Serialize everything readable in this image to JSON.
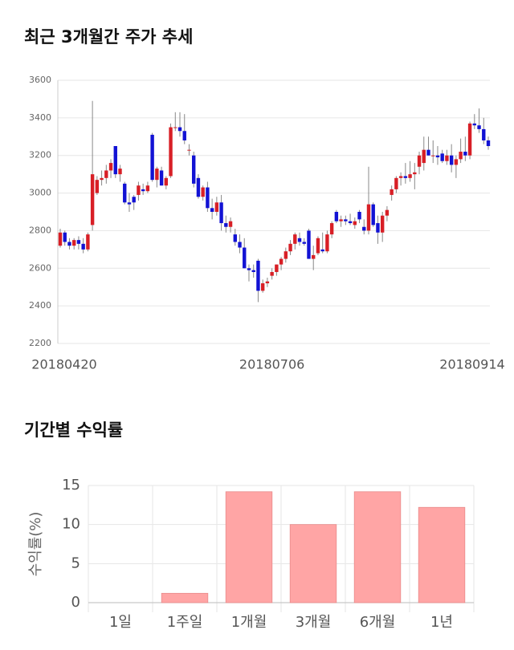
{
  "chart_data": [
    {
      "type": "candlestick",
      "title": "최근 3개월간 주가 추세",
      "categories": [
        "20180420",
        null,
        null,
        null,
        null,
        null,
        null,
        null,
        null,
        null,
        null,
        null,
        null,
        null,
        null,
        null,
        null,
        null,
        null,
        null,
        null,
        null,
        null,
        null,
        null,
        null,
        null,
        null,
        null,
        null,
        null,
        null,
        null,
        null,
        null,
        null,
        null,
        null,
        null,
        null,
        null,
        null,
        null,
        null,
        null,
        null,
        "20180706",
        null,
        null,
        null,
        null,
        null,
        null,
        null,
        null,
        null,
        null,
        null,
        null,
        null,
        null,
        null,
        null,
        null,
        null,
        null,
        null,
        null,
        null,
        null,
        null,
        null,
        null,
        null,
        null,
        null,
        null,
        null,
        null,
        null,
        null,
        null,
        null,
        null,
        null,
        null,
        null,
        null,
        null,
        null,
        null,
        null,
        null,
        "20180914"
      ],
      "open": [
        2720,
        2790,
        2740,
        2720,
        2750,
        2730,
        2700,
        2830,
        3000,
        3070,
        3080,
        3120,
        3250,
        3100,
        3050,
        2950,
        2980,
        2990,
        3020,
        3010,
        3310,
        3070,
        3120,
        3040,
        3090,
        3350,
        3350,
        3330,
        3230,
        3200,
        3080,
        2980,
        3030,
        2920,
        2900,
        2950,
        2840,
        2820,
        2780,
        2740,
        2710,
        2600,
        2590,
        2640,
        2480,
        2520,
        2560,
        2580,
        2620,
        2650,
        2690,
        2730,
        2760,
        2740,
        2800,
        2650,
        2680,
        2700,
        2690,
        2780,
        2900,
        2850,
        2860,
        2850,
        2830,
        2900,
        2820,
        2800,
        2940,
        2840,
        2790,
        2880,
        2990,
        3020,
        3080,
        3090,
        3080,
        3100,
        3140,
        3160,
        3230,
        3200,
        3200,
        3210,
        3170,
        3200,
        3150,
        3180,
        3220,
        3200,
        3370,
        3360,
        3340,
        3280
      ],
      "high": [
        2810,
        2800,
        2760,
        2760,
        2770,
        2760,
        2790,
        3490,
        3090,
        3120,
        3150,
        3180,
        3250,
        3150,
        3060,
        3000,
        2990,
        3060,
        3050,
        3060,
        3320,
        3140,
        3140,
        3090,
        3370,
        3430,
        3430,
        3420,
        3260,
        3220,
        3100,
        3040,
        3060,
        2970,
        2980,
        2990,
        2880,
        2870,
        2810,
        2780,
        2760,
        2620,
        2620,
        2650,
        2540,
        2550,
        2600,
        2620,
        2660,
        2710,
        2750,
        2790,
        2790,
        2760,
        2810,
        2720,
        2770,
        2790,
        2800,
        2850,
        2910,
        2880,
        2880,
        2890,
        2870,
        2910,
        2860,
        3140,
        2950,
        2880,
        2900,
        2930,
        3040,
        3090,
        3110,
        3160,
        3170,
        3160,
        3220,
        3300,
        3300,
        3280,
        3250,
        3230,
        3230,
        3260,
        3200,
        3290,
        3300,
        3380,
        3420,
        3450,
        3400,
        3300
      ],
      "low": [
        2710,
        2720,
        2700,
        2700,
        2700,
        2680,
        2690,
        2800,
        2990,
        3040,
        3050,
        3080,
        3080,
        3060,
        2940,
        2900,
        2910,
        2960,
        2990,
        3000,
        3060,
        3030,
        3040,
        3020,
        3080,
        3330,
        3300,
        3260,
        3200,
        3030,
        2970,
        2960,
        2900,
        2860,
        2880,
        2800,
        2790,
        2790,
        2720,
        2680,
        2600,
        2530,
        2550,
        2420,
        2470,
        2500,
        2540,
        2560,
        2590,
        2630,
        2670,
        2700,
        2720,
        2720,
        2650,
        2590,
        2670,
        2680,
        2680,
        2760,
        2840,
        2820,
        2830,
        2830,
        2810,
        2840,
        2780,
        2780,
        2820,
        2730,
        2740,
        2850,
        2960,
        3000,
        3040,
        3050,
        3060,
        3020,
        3100,
        3120,
        3200,
        3160,
        3150,
        3160,
        3150,
        3110,
        3080,
        3160,
        3170,
        3180,
        3340,
        3320,
        3260,
        3230
      ],
      "close": [
        2790,
        2740,
        2720,
        2750,
        2730,
        2700,
        2780,
        3100,
        3070,
        3080,
        3120,
        3160,
        3100,
        3130,
        2950,
        2940,
        2950,
        3040,
        3010,
        3040,
        3070,
        3130,
        3040,
        3080,
        3350,
        3350,
        3330,
        3280,
        3230,
        3050,
        2980,
        3030,
        2920,
        2900,
        2950,
        2840,
        2820,
        2850,
        2740,
        2710,
        2600,
        2590,
        2580,
        2480,
        2520,
        2530,
        2580,
        2620,
        2650,
        2690,
        2730,
        2780,
        2740,
        2730,
        2650,
        2670,
        2760,
        2690,
        2780,
        2840,
        2850,
        2860,
        2850,
        2840,
        2850,
        2860,
        2800,
        2940,
        2830,
        2790,
        2880,
        2910,
        3020,
        3080,
        3090,
        3080,
        3100,
        3110,
        3200,
        3230,
        3200,
        3200,
        3190,
        3170,
        3200,
        3150,
        3180,
        3220,
        3200,
        3370,
        3360,
        3340,
        3280,
        3250
      ],
      "up_color": "#d81f26",
      "down_color": "#1212d4",
      "ylim": [
        2200,
        3600
      ],
      "yticks": [
        2200,
        2400,
        2600,
        2800,
        3000,
        3200,
        3400,
        3600
      ],
      "grid": true
    },
    {
      "type": "bar",
      "title": "기간별 수익률",
      "ylabel": "수익률(%)",
      "categories": [
        "1일",
        "1주일",
        "1개월",
        "3개월",
        "6개월",
        "1년"
      ],
      "values": [
        0,
        1.2,
        14.2,
        10,
        14.2,
        12.2
      ],
      "color": "#ffa5a5",
      "ylim": [
        0,
        15
      ],
      "yticks": [
        0,
        5,
        10,
        15
      ],
      "grid": true
    }
  ]
}
